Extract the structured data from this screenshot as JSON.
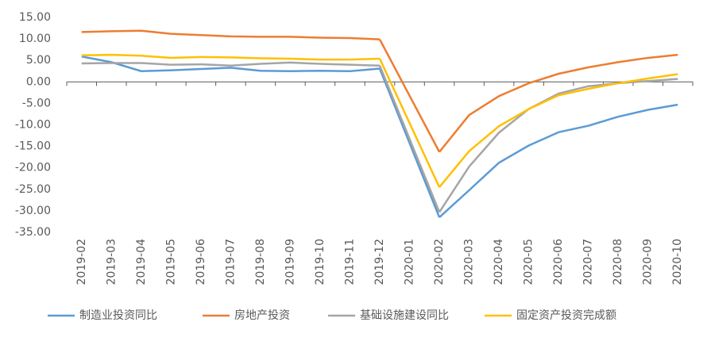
{
  "chart_data": {
    "type": "line",
    "categories": [
      "2019-02",
      "2019-03",
      "2019-04",
      "2019-05",
      "2019-06",
      "2019-07",
      "2019-08",
      "2019-09",
      "2019-10",
      "2019-11",
      "2019-12",
      "2020-01",
      "2020-02",
      "2020-03",
      "2020-04",
      "2020-05",
      "2020-06",
      "2020-07",
      "2020-08",
      "2020-09",
      "2020-10"
    ],
    "series": [
      {
        "name": "制造业投资同比",
        "color": "#5b9bd5",
        "values": [
          5.9,
          4.6,
          2.5,
          2.7,
          3.0,
          3.3,
          2.6,
          2.5,
          2.6,
          2.5,
          3.1,
          null,
          -31.5,
          -25.2,
          -18.8,
          -14.8,
          -11.7,
          -10.2,
          -8.1,
          -6.5,
          -5.3
        ]
      },
      {
        "name": "房地产投资",
        "color": "#ed7d31",
        "values": [
          11.6,
          11.8,
          11.9,
          11.2,
          10.9,
          10.6,
          10.5,
          10.5,
          10.3,
          10.2,
          9.9,
          null,
          -16.3,
          -7.7,
          -3.3,
          -0.3,
          1.9,
          3.4,
          4.6,
          5.6,
          6.3
        ]
      },
      {
        "name": "基础设施建设同比",
        "color": "#a5a5a5",
        "values": [
          4.3,
          4.4,
          4.4,
          4.0,
          4.1,
          3.8,
          4.2,
          4.5,
          4.2,
          4.0,
          3.8,
          null,
          -30.3,
          -19.7,
          -11.8,
          -6.3,
          -2.7,
          -1.0,
          -0.3,
          0.2,
          0.7
        ]
      },
      {
        "name": "固定资产投资完成额",
        "color": "#ffc000",
        "values": [
          6.2,
          6.3,
          6.1,
          5.6,
          5.8,
          5.7,
          5.5,
          5.4,
          5.2,
          5.2,
          5.4,
          null,
          -24.5,
          -16.1,
          -10.3,
          -6.3,
          -3.1,
          -1.6,
          -0.3,
          0.8,
          1.8
        ]
      }
    ],
    "ylim": [
      -35,
      15
    ],
    "yticks": [
      {
        "value": 15,
        "label": "15.00"
      },
      {
        "value": 10,
        "label": "10.00"
      },
      {
        "value": 5,
        "label": "5.00"
      },
      {
        "value": 0,
        "label": "0.00"
      },
      {
        "value": -5,
        "label": "-5.00"
      },
      {
        "value": -10,
        "label": "-10.00"
      },
      {
        "value": -15,
        "label": "-15.00"
      },
      {
        "value": -20,
        "label": "-20.00"
      },
      {
        "value": -25,
        "label": "-25.00"
      },
      {
        "value": -30,
        "label": "-30.00"
      },
      {
        "value": -35,
        "label": "-35.00"
      }
    ],
    "grid": false,
    "legend": "bottom"
  }
}
